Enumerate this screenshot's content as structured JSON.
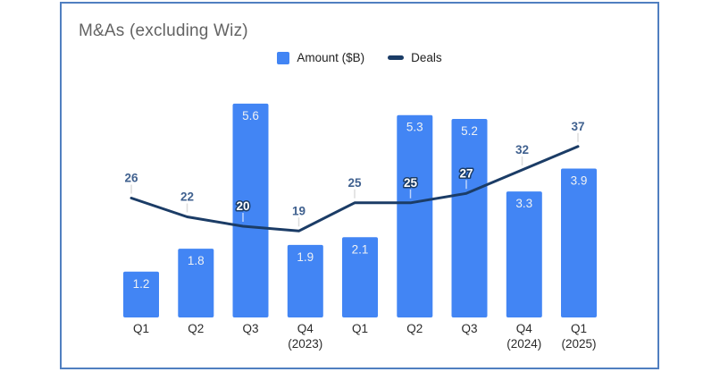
{
  "title": "M&As (excluding Wiz)",
  "legend": {
    "items": [
      {
        "label": "Amount ($B)",
        "swatch": "square"
      },
      {
        "label": "Deals",
        "swatch": "dash"
      }
    ]
  },
  "colors": {
    "bar": "#4285f4",
    "line": "#1b3c66",
    "card_border": "#507fc0",
    "title_text": "#636363",
    "axis_label_text": "#2b2b2b",
    "bar_value_label": "#eef1f4",
    "deals_value_label": "#40618f",
    "deals_label_outline_fill": "#ffffff",
    "leader_line": "#dcdcdc",
    "leader_line_on_bar": "rgba(255,255,255,0.65)"
  },
  "chart_data": {
    "type": "combo-bar-line",
    "title": "M&As (excluding Wiz)",
    "categories": [
      [
        "Q1"
      ],
      [
        "Q2"
      ],
      [
        "Q3"
      ],
      [
        "Q4",
        "(2023)"
      ],
      [
        "Q1"
      ],
      [
        "Q2"
      ],
      [
        "Q3"
      ],
      [
        "Q4",
        "(2024)"
      ],
      [
        "Q1",
        "(2025)"
      ]
    ],
    "series": [
      {
        "name": "Amount ($B)",
        "type": "bar",
        "color": "#4285f4",
        "values": [
          1.2,
          1.8,
          5.6,
          1.9,
          2.1,
          5.3,
          5.2,
          3.3,
          3.9
        ],
        "value_labels_shown": true
      },
      {
        "name": "Deals",
        "type": "line",
        "color": "#1b3c66",
        "values": [
          26,
          22,
          20,
          19,
          25,
          25,
          27,
          32,
          37
        ],
        "value_labels_shown": true
      }
    ],
    "xlabel": "",
    "ylabel": "",
    "gridlines": false,
    "axes_shown": false,
    "legend_position": "top-center"
  }
}
